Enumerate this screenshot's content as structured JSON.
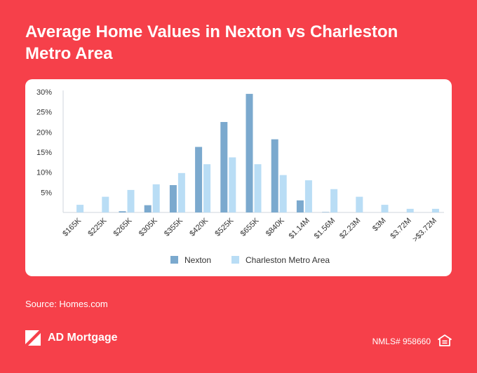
{
  "title": "Average Home Values in Nexton vs Charleston Metro Area",
  "source": "Source: Homes.com",
  "brand": {
    "name": "AD Mortgage",
    "logo_icon": "ad-mortgage-logo-icon"
  },
  "nmls": "NMLS# 958660",
  "equal_housing_icon": "equal-housing-icon",
  "colors": {
    "background": "#F6404A",
    "nexton": "#7BA9CE",
    "charleston": "#B9DDF5"
  },
  "chart_data": {
    "type": "bar",
    "title": "Average Home Values in Nexton vs Charleston Metro Area",
    "xlabel": "",
    "ylabel": "",
    "categories": [
      "$165K",
      "$225K",
      "$265K",
      "$305K",
      "$355K",
      "$420K",
      "$525K",
      "$655K",
      "$840K",
      "$1.14M",
      "$1.56M",
      "$2.23M",
      "$3M",
      "$3.72M",
      ">$3.72M"
    ],
    "series": [
      {
        "name": "Nexton",
        "color": "#7BA9CE",
        "values": [
          0,
          0,
          0.3,
          1.8,
          6.8,
          16.3,
          22.5,
          29.5,
          18.2,
          3.0,
          0.1,
          0,
          0,
          0,
          0
        ]
      },
      {
        "name": "Charleston Metro Area",
        "color": "#B9DDF5",
        "values": [
          1.9,
          3.9,
          5.6,
          7.0,
          9.8,
          12.0,
          13.7,
          12.0,
          9.3,
          8.0,
          5.8,
          3.9,
          1.9,
          0.9,
          0.9
        ]
      }
    ],
    "ylim": [
      0,
      30
    ],
    "yticks": [
      5,
      10,
      15,
      20,
      25,
      30
    ],
    "ytick_labels": [
      "5%",
      "10%",
      "15%",
      "20%",
      "25%",
      "30%"
    ],
    "legend_position": "bottom",
    "grid": false
  }
}
